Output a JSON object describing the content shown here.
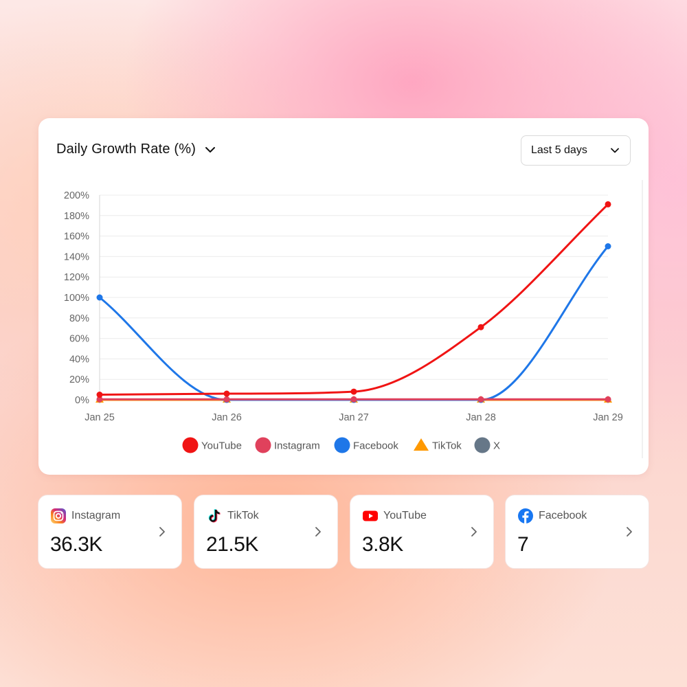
{
  "card": {
    "title": "Daily Growth Rate (%)",
    "range_label": "Last 5 days"
  },
  "chart_data": {
    "type": "line",
    "categories": [
      "Jan 25",
      "Jan 26",
      "Jan 27",
      "Jan 28",
      "Jan 29"
    ],
    "y_tick_labels": [
      "0%",
      "20%",
      "40%",
      "60%",
      "80%",
      "100%",
      "120%",
      "140%",
      "160%",
      "180%",
      "200%"
    ],
    "ylim": [
      0,
      200
    ],
    "grid": true,
    "legend_position": "bottom",
    "series": [
      {
        "name": "YouTube",
        "color": "#f01414",
        "marker": "circle",
        "values": [
          5,
          6,
          8,
          71,
          191
        ]
      },
      {
        "name": "Instagram",
        "color": "#e0415c",
        "marker": "circle",
        "values": [
          0.5,
          0.5,
          0.5,
          0.5,
          0.5
        ]
      },
      {
        "name": "Facebook",
        "color": "#1f77e8",
        "marker": "circle",
        "values": [
          100,
          0,
          0,
          0,
          150
        ]
      },
      {
        "name": "TikTok",
        "color": "#ff9900",
        "marker": "triangle",
        "values": [
          0,
          0,
          0,
          0,
          0
        ]
      },
      {
        "name": "X",
        "color": "#667788",
        "marker": "circle",
        "values": [
          0,
          0,
          0,
          0,
          0
        ]
      }
    ]
  },
  "stats": [
    {
      "name": "Instagram",
      "value": "36.3K",
      "icon": "instagram-icon"
    },
    {
      "name": "TikTok",
      "value": "21.5K",
      "icon": "tiktok-icon"
    },
    {
      "name": "YouTube",
      "value": "3.8K",
      "icon": "youtube-icon"
    },
    {
      "name": "Facebook",
      "value": "7",
      "icon": "facebook-icon"
    }
  ]
}
